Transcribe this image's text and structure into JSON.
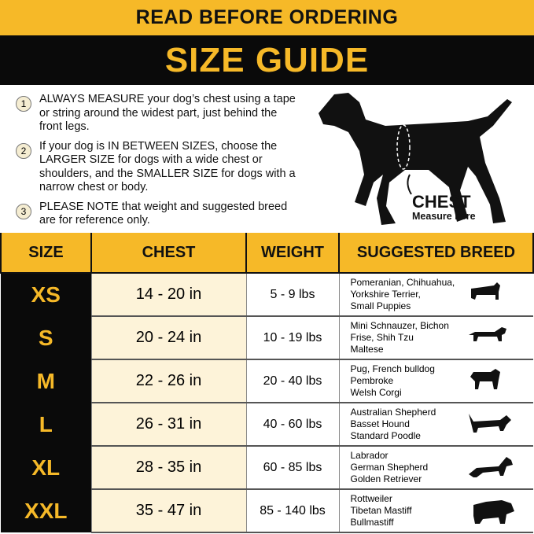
{
  "banner": "READ BEFORE ORDERING",
  "title": "SIZE GUIDE",
  "steps": [
    {
      "n": "1",
      "text": "ALWAYS MEASURE your dog’s chest using a tape or string around the widest part, just behind the front legs."
    },
    {
      "n": "2",
      "text": "If your dog is IN BETWEEN SIZES, choose the LARGER SIZE for dogs with a wide chest or shoulders, and the SMALLER SIZE for dogs with a narrow chest or body."
    },
    {
      "n": "3",
      "text": "PLEASE NOTE that weight and suggested breed are for reference only."
    }
  ],
  "chest_label": "CHEST",
  "chest_sub": "Measure here",
  "table": {
    "headers": [
      "SIZE",
      "CHEST",
      "WEIGHT",
      "SUGGESTED BREED"
    ],
    "rows": [
      {
        "size": "XS",
        "chest": "14 - 20 in",
        "weight": "5 - 9 lbs",
        "breed": [
          "Pomeranian, Chihuahua,",
          "Yorkshire Terrier,",
          "Small Puppies"
        ],
        "icon": "yorkshire-terrier-icon"
      },
      {
        "size": "S",
        "chest": "20 - 24 in",
        "weight": "10 - 19 lbs",
        "breed": [
          "Mini Schnauzer, Bichon",
          "Frise, Shih Tzu",
          "Maltese"
        ],
        "icon": "dachshund-icon"
      },
      {
        "size": "M",
        "chest": "22 - 26 in",
        "weight": "20 - 40 lbs",
        "breed": [
          "Pug, French bulldog",
          "Pembroke",
          "Welsh Corgi"
        ],
        "icon": "pug-icon"
      },
      {
        "size": "L",
        "chest": "26 - 31 in",
        "weight": "40 - 60 lbs",
        "breed": [
          "Australian Shepherd",
          "Basset Hound",
          "Standard Poodle"
        ],
        "icon": "basset-hound-icon"
      },
      {
        "size": "XL",
        "chest": "28 - 35 in",
        "weight": "60 - 85 lbs",
        "breed": [
          "Labrador",
          "German Shepherd",
          "Golden Retriever"
        ],
        "icon": "german-shepherd-icon"
      },
      {
        "size": "XXL",
        "chest": "35 - 47 in",
        "weight": "85 - 140 lbs",
        "breed": [
          "Rottweiler",
          "Tibetan Mastiff",
          "Bullmastiff"
        ],
        "icon": "mastiff-icon"
      }
    ]
  },
  "colors": {
    "accent": "#f6b928",
    "dark": "#0a0a0a",
    "cream": "#fdf3d9"
  }
}
